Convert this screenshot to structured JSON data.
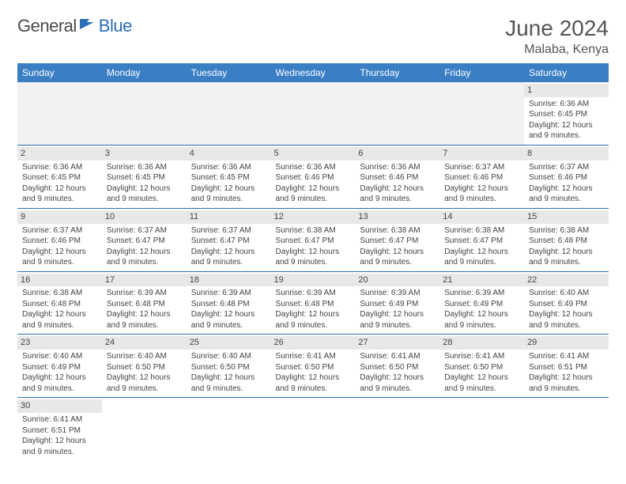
{
  "logo": {
    "general": "General",
    "blue": "Blue"
  },
  "title": "June 2024",
  "location": "Malaba, Kenya",
  "weekdays": [
    "Sunday",
    "Monday",
    "Tuesday",
    "Wednesday",
    "Thursday",
    "Friday",
    "Saturday"
  ],
  "colors": {
    "header_bg": "#3a7fc4",
    "header_text": "#ffffff",
    "day_number_bg": "#e8e8e8",
    "cell_border": "#2a6db8",
    "empty_bg": "#f2f2f2",
    "logo_blue": "#2a6db8",
    "text": "#444444"
  },
  "days": [
    {
      "n": 1,
      "sunrise": "6:36 AM",
      "sunset": "6:45 PM",
      "daylight": "12 hours and 9 minutes."
    },
    {
      "n": 2,
      "sunrise": "6:36 AM",
      "sunset": "6:45 PM",
      "daylight": "12 hours and 9 minutes."
    },
    {
      "n": 3,
      "sunrise": "6:36 AM",
      "sunset": "6:45 PM",
      "daylight": "12 hours and 9 minutes."
    },
    {
      "n": 4,
      "sunrise": "6:36 AM",
      "sunset": "6:45 PM",
      "daylight": "12 hours and 9 minutes."
    },
    {
      "n": 5,
      "sunrise": "6:36 AM",
      "sunset": "6:46 PM",
      "daylight": "12 hours and 9 minutes."
    },
    {
      "n": 6,
      "sunrise": "6:36 AM",
      "sunset": "6:46 PM",
      "daylight": "12 hours and 9 minutes."
    },
    {
      "n": 7,
      "sunrise": "6:37 AM",
      "sunset": "6:46 PM",
      "daylight": "12 hours and 9 minutes."
    },
    {
      "n": 8,
      "sunrise": "6:37 AM",
      "sunset": "6:46 PM",
      "daylight": "12 hours and 9 minutes."
    },
    {
      "n": 9,
      "sunrise": "6:37 AM",
      "sunset": "6:46 PM",
      "daylight": "12 hours and 9 minutes."
    },
    {
      "n": 10,
      "sunrise": "6:37 AM",
      "sunset": "6:47 PM",
      "daylight": "12 hours and 9 minutes."
    },
    {
      "n": 11,
      "sunrise": "6:37 AM",
      "sunset": "6:47 PM",
      "daylight": "12 hours and 9 minutes."
    },
    {
      "n": 12,
      "sunrise": "6:38 AM",
      "sunset": "6:47 PM",
      "daylight": "12 hours and 9 minutes."
    },
    {
      "n": 13,
      "sunrise": "6:38 AM",
      "sunset": "6:47 PM",
      "daylight": "12 hours and 9 minutes."
    },
    {
      "n": 14,
      "sunrise": "6:38 AM",
      "sunset": "6:47 PM",
      "daylight": "12 hours and 9 minutes."
    },
    {
      "n": 15,
      "sunrise": "6:38 AM",
      "sunset": "6:48 PM",
      "daylight": "12 hours and 9 minutes."
    },
    {
      "n": 16,
      "sunrise": "6:38 AM",
      "sunset": "6:48 PM",
      "daylight": "12 hours and 9 minutes."
    },
    {
      "n": 17,
      "sunrise": "6:39 AM",
      "sunset": "6:48 PM",
      "daylight": "12 hours and 9 minutes."
    },
    {
      "n": 18,
      "sunrise": "6:39 AM",
      "sunset": "6:48 PM",
      "daylight": "12 hours and 9 minutes."
    },
    {
      "n": 19,
      "sunrise": "6:39 AM",
      "sunset": "6:48 PM",
      "daylight": "12 hours and 9 minutes."
    },
    {
      "n": 20,
      "sunrise": "6:39 AM",
      "sunset": "6:49 PM",
      "daylight": "12 hours and 9 minutes."
    },
    {
      "n": 21,
      "sunrise": "6:39 AM",
      "sunset": "6:49 PM",
      "daylight": "12 hours and 9 minutes."
    },
    {
      "n": 22,
      "sunrise": "6:40 AM",
      "sunset": "6:49 PM",
      "daylight": "12 hours and 9 minutes."
    },
    {
      "n": 23,
      "sunrise": "6:40 AM",
      "sunset": "6:49 PM",
      "daylight": "12 hours and 9 minutes."
    },
    {
      "n": 24,
      "sunrise": "6:40 AM",
      "sunset": "6:50 PM",
      "daylight": "12 hours and 9 minutes."
    },
    {
      "n": 25,
      "sunrise": "6:40 AM",
      "sunset": "6:50 PM",
      "daylight": "12 hours and 9 minutes."
    },
    {
      "n": 26,
      "sunrise": "6:41 AM",
      "sunset": "6:50 PM",
      "daylight": "12 hours and 9 minutes."
    },
    {
      "n": 27,
      "sunrise": "6:41 AM",
      "sunset": "6:50 PM",
      "daylight": "12 hours and 9 minutes."
    },
    {
      "n": 28,
      "sunrise": "6:41 AM",
      "sunset": "6:50 PM",
      "daylight": "12 hours and 9 minutes."
    },
    {
      "n": 29,
      "sunrise": "6:41 AM",
      "sunset": "6:51 PM",
      "daylight": "12 hours and 9 minutes."
    },
    {
      "n": 30,
      "sunrise": "6:41 AM",
      "sunset": "6:51 PM",
      "daylight": "12 hours and 9 minutes."
    }
  ],
  "labels": {
    "sunrise": "Sunrise:",
    "sunset": "Sunset:",
    "daylight": "Daylight:"
  },
  "first_day_column": 6,
  "typography": {
    "title_size": 28,
    "location_size": 16,
    "weekday_size": 12,
    "cell_size": 10
  }
}
